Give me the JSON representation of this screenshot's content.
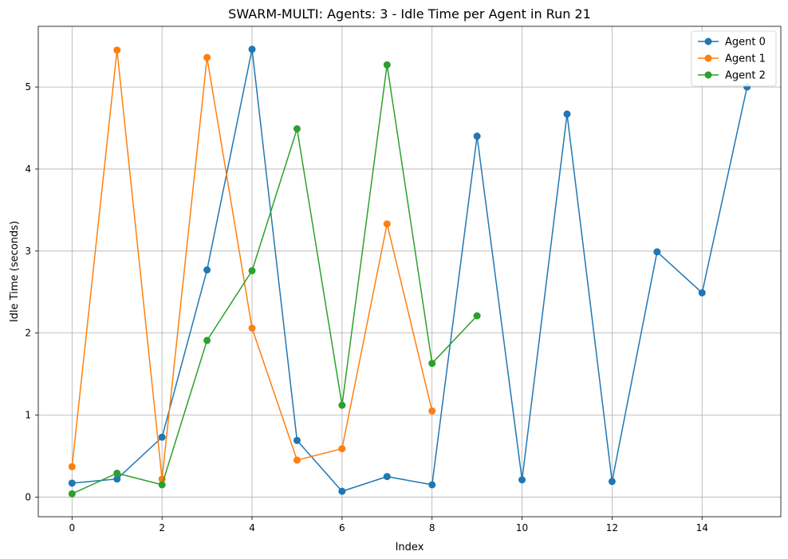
{
  "chart_data": {
    "type": "line",
    "title": "SWARM-MULTI: Agents: 3 - Idle Time per Agent in Run 21",
    "xlabel": "Index",
    "ylabel": "Idle Time (seconds)",
    "xlim": [
      -0.75,
      15.75
    ],
    "ylim": [
      -0.24,
      5.74
    ],
    "xticks": [
      0,
      2,
      4,
      6,
      8,
      10,
      12,
      14
    ],
    "yticks": [
      0,
      1,
      2,
      3,
      4,
      5
    ],
    "grid": true,
    "legend_position": "top-right",
    "series": [
      {
        "name": "Agent 0",
        "color": "#1f77b4",
        "x": [
          0,
          1,
          2,
          3,
          4,
          5,
          6,
          7,
          8,
          9,
          10,
          11,
          12,
          13,
          14,
          15
        ],
        "values": [
          0.17,
          0.22,
          0.73,
          2.77,
          5.46,
          0.69,
          0.07,
          0.25,
          0.15,
          4.4,
          0.21,
          4.67,
          0.19,
          2.99,
          2.49,
          5.0
        ]
      },
      {
        "name": "Agent 1",
        "color": "#ff7f0e",
        "x": [
          0,
          1,
          2,
          3,
          4,
          5,
          6,
          7,
          8
        ],
        "values": [
          0.37,
          5.45,
          0.22,
          5.36,
          2.06,
          0.45,
          0.59,
          3.33,
          1.05
        ]
      },
      {
        "name": "Agent 2",
        "color": "#2ca02c",
        "x": [
          0,
          1,
          2,
          3,
          4,
          5,
          6,
          7,
          8,
          9
        ],
        "values": [
          0.04,
          0.29,
          0.15,
          1.91,
          2.76,
          4.49,
          1.12,
          5.27,
          1.63,
          2.21
        ]
      }
    ]
  }
}
